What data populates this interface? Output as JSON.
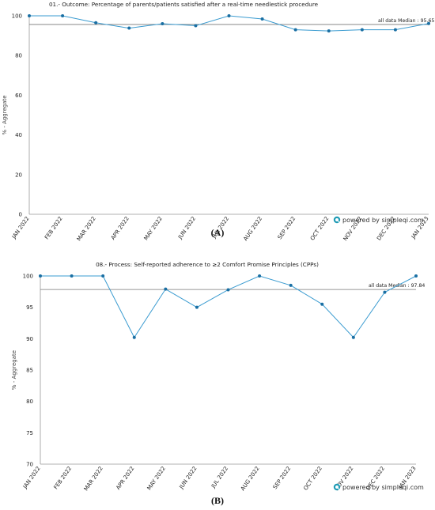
{
  "chart_data": [
    {
      "type": "line",
      "panel": "(A)",
      "title": "01.- Outcome: Percentage of parents/patients satisfied after a real-time needlestick procedure",
      "ylabel": "% - Aggregate",
      "ylim": [
        0,
        100
      ],
      "yticks": [
        "0",
        "20",
        "40",
        "60",
        "80",
        "100"
      ],
      "categories": [
        "JAN 2022",
        "FEB 2022",
        "MAR 2022",
        "APR 2022",
        "MAY 2022",
        "JUN 2022",
        "JUL 2022",
        "AUG 2022",
        "SEP 2022",
        "OCT 2022",
        "NOV 2022",
        "DEC 2022",
        "JAN 2023"
      ],
      "values": [
        100,
        100,
        96.5,
        93.8,
        96,
        95,
        100,
        98.4,
        93,
        92.4,
        93,
        93,
        96.1
      ],
      "median": 95.65,
      "median_label": "all data Median : 95.65",
      "grid": false,
      "color": "#3a9bd0"
    },
    {
      "type": "line",
      "panel": "(B)",
      "title": "08.- Process: Self-reported adherence to ≥2 Comfort Promise Principles (CPPs)",
      "ylabel": "% - Aggregate",
      "ylim": [
        70,
        100
      ],
      "yticks": [
        "70",
        "75",
        "80",
        "85",
        "90",
        "95",
        "100"
      ],
      "categories": [
        "JAN 2022",
        "FEB 2022",
        "MAR 2022",
        "APR 2022",
        "MAY 2022",
        "JUN 2022",
        "JUL 2022",
        "AUG 2022",
        "SEP 2022",
        "OCT 2022",
        "NOV 2022",
        "DEC 2022",
        "JAN 2023"
      ],
      "values": [
        100,
        100,
        100,
        90.2,
        97.9,
        95,
        97.8,
        100,
        98.5,
        95.5,
        90.2,
        97.4,
        100
      ],
      "median": 97.84,
      "median_label": "all data Median : 97.84",
      "grid": false,
      "color": "#3a9bd0"
    }
  ],
  "branding": {
    "text": "powered by simpleqi.com",
    "icon": "q-logo-icon",
    "color": "#1f9bb5"
  }
}
